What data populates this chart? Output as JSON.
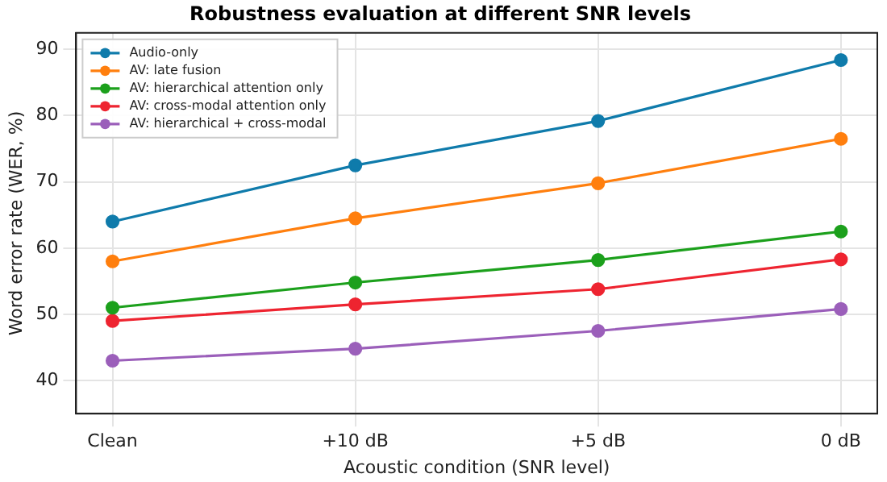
{
  "chart_data": {
    "type": "line",
    "title": "Robustness evaluation at different SNR levels",
    "xlabel": "Acoustic condition (SNR level)",
    "ylabel": "Word error rate (WER, %)",
    "categories": [
      "Clean",
      "+10 dB",
      "+5 dB",
      "0 dB"
    ],
    "series": [
      {
        "name": "Audio-only",
        "color": "#0f7bab",
        "values": [
          64,
          72.5,
          79.2,
          88.4
        ]
      },
      {
        "name": "AV: late fusion",
        "color": "#ff7f0e",
        "values": [
          58,
          64.5,
          69.8,
          76.5
        ]
      },
      {
        "name": "AV: hierarchical attention only",
        "color": "#1ca01c",
        "values": [
          51,
          54.8,
          58.2,
          62.5
        ]
      },
      {
        "name": "AV: cross-modal attention only",
        "color": "#ee2430",
        "values": [
          49,
          51.5,
          53.8,
          58.3
        ]
      },
      {
        "name": "AV: hierarchical + cross-modal",
        "color": "#9b5fba",
        "values": [
          43,
          44.8,
          47.5,
          50.8
        ]
      }
    ],
    "ylim": [
      35,
      92.5
    ],
    "yticks": [
      40,
      50,
      60,
      70,
      80,
      90
    ],
    "grid": true,
    "legend": "top left",
    "marker": "circle",
    "line_style": "solid"
  }
}
